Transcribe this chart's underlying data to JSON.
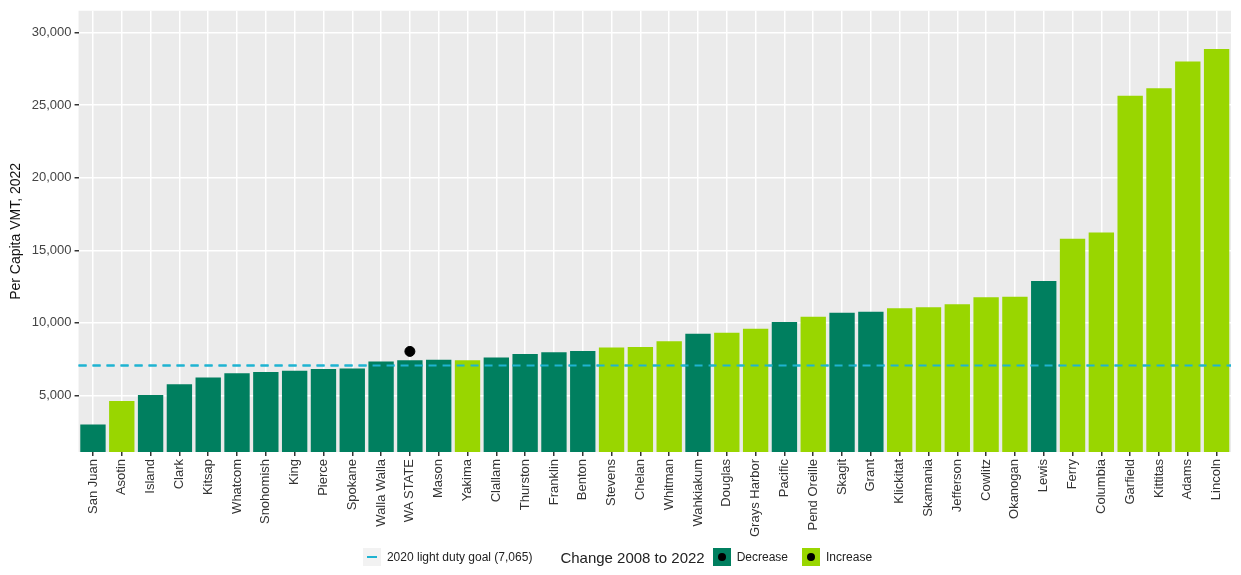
{
  "chart_data": {
    "type": "bar",
    "ylabel": "Per Capita VMT, 2022",
    "categories": [
      "San Juan",
      "Asotin",
      "Island",
      "Clark",
      "Kitsap",
      "Whatcom",
      "Snohomish",
      "King",
      "Pierce",
      "Spokane",
      "Walla Walla",
      "WA STATE",
      "Mason",
      "Yakima",
      "Clallam",
      "Thurston",
      "Franklin",
      "Benton",
      "Stevens",
      "Chelan",
      "Whitman",
      "Wahkiakum",
      "Douglas",
      "Grays Harbor",
      "Pacific",
      "Pend Oreille",
      "Skagit",
      "Grant",
      "Klickitat",
      "Skamania",
      "Jefferson",
      "Cowlitz",
      "Okanogan",
      "Lewis",
      "Ferry",
      "Columbia",
      "Garfield",
      "Kittitas",
      "Adams",
      "Lincoln"
    ],
    "series": [
      {
        "name": "Decrease",
        "color": "#007f5f",
        "values": [
          3000,
          null,
          5030,
          5760,
          6240,
          6520,
          6610,
          6700,
          6820,
          6850,
          7330,
          7420,
          7450,
          null,
          7610,
          7850,
          7970,
          8060,
          null,
          null,
          null,
          9250,
          null,
          null,
          10050,
          null,
          10700,
          10760,
          null,
          null,
          null,
          null,
          null,
          12880,
          null,
          null,
          null,
          null,
          null,
          null
        ]
      },
      {
        "name": "Increase",
        "color": "#99d600",
        "values": [
          null,
          4610,
          null,
          null,
          null,
          null,
          null,
          null,
          null,
          null,
          null,
          null,
          null,
          7420,
          null,
          null,
          null,
          null,
          8300,
          8330,
          8730,
          null,
          9320,
          9590,
          null,
          10420,
          null,
          null,
          11000,
          11070,
          11280,
          11770,
          11800,
          null,
          15800,
          16220,
          25650,
          26170,
          28010,
          28870
        ]
      },
      {
        "type": "scatter",
        "color": "#000000",
        "x": [
          "WA STATE"
        ],
        "values": [
          8030
        ]
      }
    ],
    "ylim": [
      1100,
      31500
    ],
    "yticks": [
      {
        "value": 5000,
        "label": "5,000"
      },
      {
        "value": 10000,
        "label": "10,000"
      },
      {
        "value": 15000,
        "label": "15,000"
      },
      {
        "value": 20000,
        "label": "20,000"
      },
      {
        "value": 25000,
        "label": "25,000"
      },
      {
        "value": 30000,
        "label": "30,000"
      }
    ],
    "ref_lines": [
      {
        "axis": "y",
        "value": 7065,
        "label": "2020 light duty goal (7,065)",
        "color": "#1fb3d1",
        "line_style": "dashed"
      }
    ],
    "legend_title": "Change 2008 to 2022",
    "legend": "bottom",
    "grid": true,
    "marker": "circle"
  }
}
